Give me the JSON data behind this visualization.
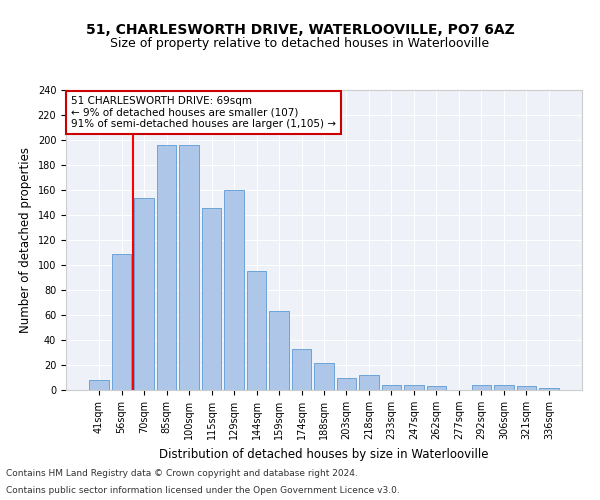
{
  "title": "51, CHARLESWORTH DRIVE, WATERLOOVILLE, PO7 6AZ",
  "subtitle": "Size of property relative to detached houses in Waterlooville",
  "xlabel": "Distribution of detached houses by size in Waterlooville",
  "ylabel": "Number of detached properties",
  "categories": [
    "41sqm",
    "56sqm",
    "70sqm",
    "85sqm",
    "100sqm",
    "115sqm",
    "129sqm",
    "144sqm",
    "159sqm",
    "174sqm",
    "188sqm",
    "203sqm",
    "218sqm",
    "233sqm",
    "247sqm",
    "262sqm",
    "277sqm",
    "292sqm",
    "306sqm",
    "321sqm",
    "336sqm"
  ],
  "values": [
    8,
    109,
    154,
    196,
    196,
    146,
    160,
    95,
    63,
    33,
    22,
    10,
    12,
    4,
    4,
    3,
    0,
    4,
    4,
    3,
    2
  ],
  "bar_color": "#aec6e8",
  "bar_edge_color": "#5b9bd5",
  "red_line_x": 1.5,
  "annotation_text": "51 CHARLESWORTH DRIVE: 69sqm\n← 9% of detached houses are smaller (107)\n91% of semi-detached houses are larger (1,105) →",
  "annotation_box_color": "#ffffff",
  "annotation_box_edge_color": "#cc0000",
  "ylim": [
    0,
    240
  ],
  "yticks": [
    0,
    20,
    40,
    60,
    80,
    100,
    120,
    140,
    160,
    180,
    200,
    220,
    240
  ],
  "background_color": "#eef2f8",
  "footer_line1": "Contains HM Land Registry data © Crown copyright and database right 2024.",
  "footer_line2": "Contains public sector information licensed under the Open Government Licence v3.0.",
  "title_fontsize": 10,
  "subtitle_fontsize": 9,
  "xlabel_fontsize": 8.5,
  "ylabel_fontsize": 8.5,
  "tick_fontsize": 7,
  "annotation_fontsize": 7.5,
  "footer_fontsize": 6.5
}
